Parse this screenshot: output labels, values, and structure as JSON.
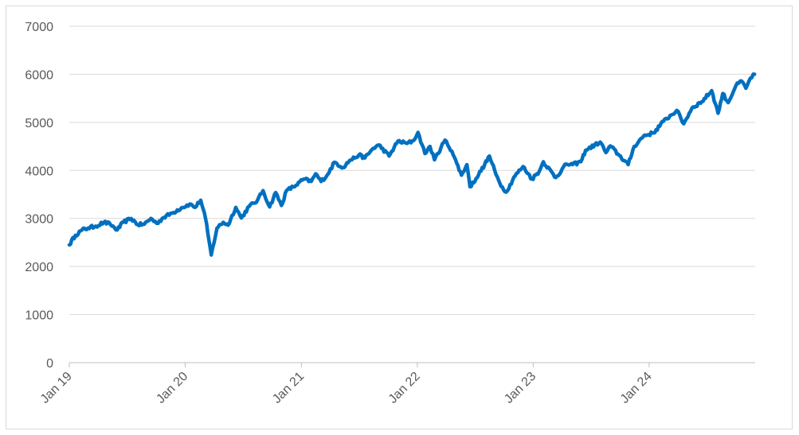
{
  "chart_data": {
    "type": "line",
    "title": "",
    "xlabel": "",
    "ylabel": "",
    "ylim": [
      0,
      7000
    ],
    "xlim": [
      "2019-01-01",
      "2024-11-30"
    ],
    "y_ticks": [
      0,
      1000,
      2000,
      3000,
      4000,
      5000,
      6000,
      7000
    ],
    "x_ticks": [
      {
        "date": "2019-01-01",
        "label": "Jan 19"
      },
      {
        "date": "2020-01-01",
        "label": "Jan 20"
      },
      {
        "date": "2021-01-01",
        "label": "Jan 21"
      },
      {
        "date": "2022-01-01",
        "label": "Jan 22"
      },
      {
        "date": "2023-01-01",
        "label": "Jan 23"
      },
      {
        "date": "2024-01-01",
        "label": "Jan 24"
      }
    ],
    "grid": "horizontal",
    "legend": "none",
    "series": [
      {
        "color": "#0070c0",
        "points": [
          [
            "2019-01-01",
            2450
          ],
          [
            "2019-01-20",
            2650
          ],
          [
            "2019-02-10",
            2760
          ],
          [
            "2019-03-01",
            2800
          ],
          [
            "2019-03-25",
            2840
          ],
          [
            "2019-04-20",
            2920
          ],
          [
            "2019-05-10",
            2880
          ],
          [
            "2019-06-01",
            2760
          ],
          [
            "2019-06-20",
            2920
          ],
          [
            "2019-07-15",
            3000
          ],
          [
            "2019-08-05",
            2870
          ],
          [
            "2019-08-25",
            2880
          ],
          [
            "2019-09-15",
            3000
          ],
          [
            "2019-10-03",
            2900
          ],
          [
            "2019-10-25",
            3020
          ],
          [
            "2019-11-20",
            3110
          ],
          [
            "2019-12-20",
            3220
          ],
          [
            "2020-01-15",
            3300
          ],
          [
            "2020-02-01",
            3230
          ],
          [
            "2020-02-19",
            3380
          ],
          [
            "2020-03-05",
            3000
          ],
          [
            "2020-03-12",
            2700
          ],
          [
            "2020-03-23",
            2240
          ],
          [
            "2020-04-10",
            2800
          ],
          [
            "2020-04-30",
            2920
          ],
          [
            "2020-05-15",
            2860
          ],
          [
            "2020-06-08",
            3230
          ],
          [
            "2020-06-26",
            3010
          ],
          [
            "2020-07-20",
            3250
          ],
          [
            "2020-08-15",
            3370
          ],
          [
            "2020-09-02",
            3580
          ],
          [
            "2020-09-23",
            3240
          ],
          [
            "2020-10-12",
            3540
          ],
          [
            "2020-10-30",
            3270
          ],
          [
            "2020-11-15",
            3580
          ],
          [
            "2020-12-15",
            3690
          ],
          [
            "2021-01-08",
            3820
          ],
          [
            "2021-02-01",
            3770
          ],
          [
            "2021-02-15",
            3930
          ],
          [
            "2021-03-04",
            3770
          ],
          [
            "2021-03-25",
            3920
          ],
          [
            "2021-04-15",
            4170
          ],
          [
            "2021-05-12",
            4060
          ],
          [
            "2021-06-01",
            4200
          ],
          [
            "2021-07-01",
            4320
          ],
          [
            "2021-07-20",
            4260
          ],
          [
            "2021-08-15",
            4460
          ],
          [
            "2021-09-02",
            4530
          ],
          [
            "2021-10-04",
            4300
          ],
          [
            "2021-11-01",
            4610
          ],
          [
            "2021-11-30",
            4560
          ],
          [
            "2021-12-20",
            4620
          ],
          [
            "2022-01-03",
            4790
          ],
          [
            "2022-01-25",
            4350
          ],
          [
            "2022-02-10",
            4500
          ],
          [
            "2022-02-24",
            4220
          ],
          [
            "2022-03-29",
            4630
          ],
          [
            "2022-04-20",
            4400
          ],
          [
            "2022-05-05",
            4150
          ],
          [
            "2022-05-20",
            3900
          ],
          [
            "2022-06-06",
            4120
          ],
          [
            "2022-06-16",
            3660
          ],
          [
            "2022-07-05",
            3830
          ],
          [
            "2022-08-01",
            4120
          ],
          [
            "2022-08-16",
            4300
          ],
          [
            "2022-09-06",
            3910
          ],
          [
            "2022-09-30",
            3590
          ],
          [
            "2022-10-12",
            3580
          ],
          [
            "2022-11-01",
            3860
          ],
          [
            "2022-11-30",
            4080
          ],
          [
            "2022-12-28",
            3820
          ],
          [
            "2023-01-20",
            3980
          ],
          [
            "2023-02-02",
            4180
          ],
          [
            "2023-03-13",
            3850
          ],
          [
            "2023-04-15",
            4130
          ],
          [
            "2023-05-05",
            4120
          ],
          [
            "2023-05-31",
            4180
          ],
          [
            "2023-06-15",
            4420
          ],
          [
            "2023-07-31",
            4590
          ],
          [
            "2023-08-18",
            4370
          ],
          [
            "2023-09-01",
            4510
          ],
          [
            "2023-09-25",
            4340
          ],
          [
            "2023-10-27",
            4120
          ],
          [
            "2023-11-15",
            4500
          ],
          [
            "2023-12-15",
            4720
          ],
          [
            "2024-01-15",
            4780
          ],
          [
            "2024-02-15",
            5020
          ],
          [
            "2024-03-28",
            5250
          ],
          [
            "2024-04-19",
            4970
          ],
          [
            "2024-05-15",
            5300
          ],
          [
            "2024-06-15",
            5430
          ],
          [
            "2024-07-16",
            5660
          ],
          [
            "2024-08-05",
            5190
          ],
          [
            "2024-08-20",
            5600
          ],
          [
            "2024-09-06",
            5410
          ],
          [
            "2024-09-30",
            5760
          ],
          [
            "2024-10-18",
            5860
          ],
          [
            "2024-11-01",
            5710
          ],
          [
            "2024-11-15",
            5920
          ],
          [
            "2024-11-28",
            6000
          ]
        ]
      }
    ]
  }
}
